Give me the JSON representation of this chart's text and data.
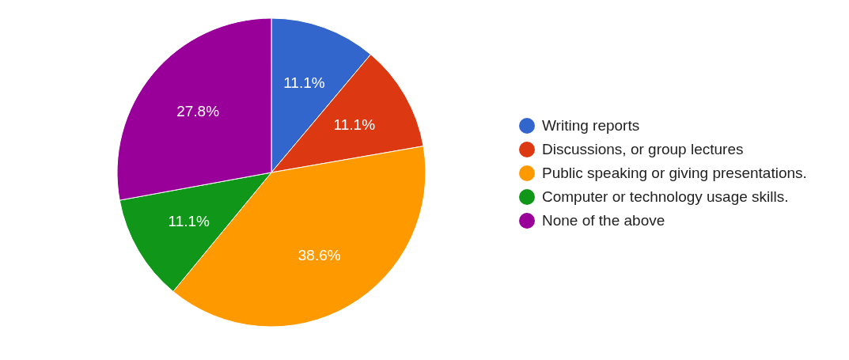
{
  "chart_data": {
    "type": "pie",
    "categories": [
      "Writing reports",
      "Discussions, or group lectures",
      "Public speaking or giving presentations.",
      "Computer or technology usage skills.",
      "None of the above"
    ],
    "values": [
      11.1,
      11.1,
      38.6,
      11.1,
      27.8
    ],
    "value_labels": [
      "11.1%",
      "11.1%",
      "38.6%",
      "11.1%",
      "27.8%"
    ],
    "colors": [
      "#3366cc",
      "#dc3912",
      "#ff9900",
      "#109618",
      "#990099"
    ],
    "legend": "right"
  }
}
